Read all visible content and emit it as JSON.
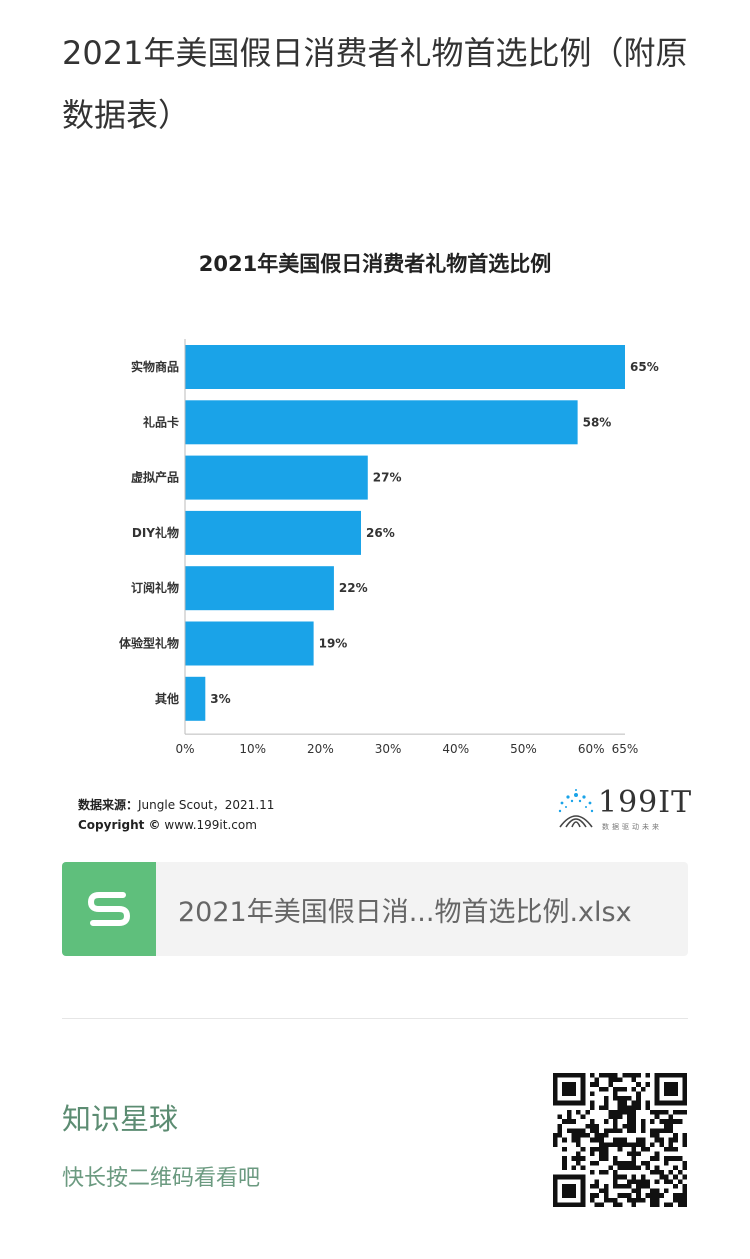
{
  "article": {
    "title": "2021年美国假日消费者礼物首选比例（附原数据表）"
  },
  "chart_data": {
    "type": "bar",
    "orientation": "horizontal",
    "title": "2021年美国假日消费者礼物首选比例",
    "categories": [
      "实物商品",
      "礼品卡",
      "虚拟产品",
      "DIY礼物",
      "订阅礼物",
      "体验型礼物",
      "其他"
    ],
    "values": [
      65,
      58,
      27,
      26,
      22,
      19,
      3
    ],
    "value_labels": [
      "65%",
      "58%",
      "27%",
      "26%",
      "22%",
      "19%",
      "3%"
    ],
    "xlim": [
      0,
      65
    ],
    "x_ticks": [
      0,
      10,
      20,
      30,
      40,
      50,
      60,
      65
    ],
    "x_tick_labels": [
      "0%",
      "10%",
      "20%",
      "30%",
      "40%",
      "50%",
      "60%",
      "65%"
    ],
    "bar_color": "#1aa3e8",
    "grid": false,
    "legend": "none"
  },
  "source": {
    "label": "数据来源：",
    "text": "Jungle Scout，2021.11",
    "copyright_label": "Copyright ©",
    "copyright_text": "www.199it.com"
  },
  "logo": {
    "text": "199IT",
    "subtitle": "数据驱动未来"
  },
  "file": {
    "name": "2021年美国假日消...物首选比例.xlsx",
    "icon": "spreadsheet-s-icon",
    "icon_color": "#5fbf7c"
  },
  "zsxq": {
    "title": "知识星球",
    "subtitle": "快长按二维码看看吧",
    "qr": "qr-code-icon"
  }
}
